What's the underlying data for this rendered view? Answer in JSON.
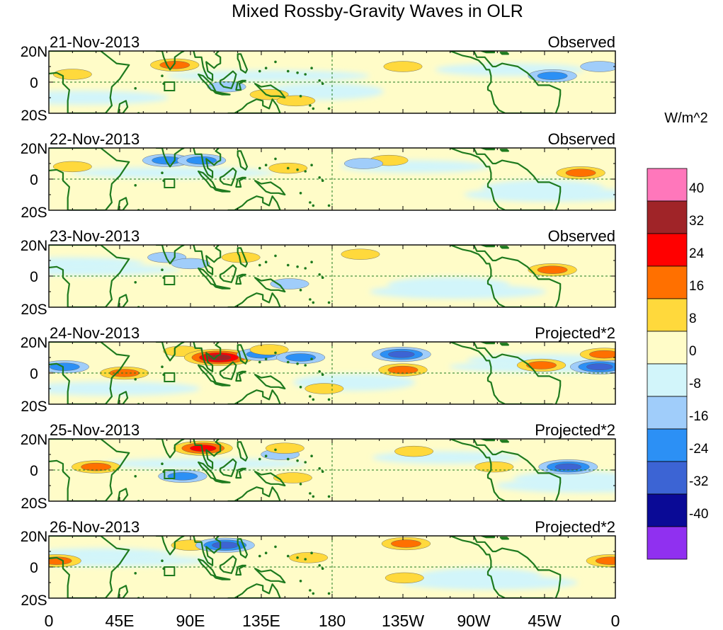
{
  "chart_data": {
    "type": "heatmap",
    "title": "Mixed Rossby-Gravity Waves in OLR",
    "units_label": "W/m^2",
    "x_ticks": [
      "0",
      "45E",
      "90E",
      "135E",
      "180",
      "135W",
      "90W",
      "45W",
      "0"
    ],
    "x_range_deg_east": [
      0,
      360
    ],
    "y_ticks": [
      "20N",
      "0",
      "20S"
    ],
    "y_range_deg": [
      -20,
      20
    ],
    "colorbar": {
      "labels": [
        "40",
        "32",
        "24",
        "16",
        "8",
        "0",
        "-8",
        "-16",
        "-24",
        "-32",
        "-40"
      ],
      "colors": [
        "#ff77bb",
        "#a02428",
        "#ff0000",
        "#ff7000",
        "#ffd93c",
        "#fffcc8",
        "#d2f5fa",
        "#a0cdfa",
        "#2c90f5",
        "#3c64d4",
        "#0a0a96",
        "#9030f0"
      ]
    },
    "panels": [
      {
        "date": "21-Nov-2013",
        "label": "Observed",
        "anomalies": [
          {
            "lon": 15,
            "lat": 5,
            "value": 8
          },
          {
            "lon": 80,
            "lat": 11,
            "value": 16
          },
          {
            "lon": 113,
            "lat": -3,
            "value": -8
          },
          {
            "lon": 140,
            "lat": -8,
            "value": 8
          },
          {
            "lon": 157,
            "lat": -12,
            "value": 8
          },
          {
            "lon": 225,
            "lat": 10,
            "value": 8
          },
          {
            "lon": 320,
            "lat": 4,
            "value": -16
          },
          {
            "lon": 350,
            "lat": 10,
            "value": -8
          }
        ]
      },
      {
        "date": "22-Nov-2013",
        "label": "Observed",
        "anomalies": [
          {
            "lon": 15,
            "lat": 8,
            "value": 8
          },
          {
            "lon": 75,
            "lat": 12,
            "value": -16
          },
          {
            "lon": 97,
            "lat": 12,
            "value": -16
          },
          {
            "lon": 152,
            "lat": 7,
            "value": 8
          },
          {
            "lon": 216,
            "lat": 12,
            "value": 8
          },
          {
            "lon": 338,
            "lat": 4,
            "value": 16
          },
          {
            "lon": 200,
            "lat": 10,
            "value": -8
          }
        ]
      },
      {
        "date": "23-Nov-2013",
        "label": "Observed",
        "anomalies": [
          {
            "lon": 75,
            "lat": 12,
            "value": -8
          },
          {
            "lon": 90,
            "lat": 8,
            "value": -8
          },
          {
            "lon": 122,
            "lat": 12,
            "value": 8
          },
          {
            "lon": 153,
            "lat": -5,
            "value": -8
          },
          {
            "lon": 198,
            "lat": 14,
            "value": 8
          },
          {
            "lon": 320,
            "lat": 4,
            "value": 16
          }
        ]
      },
      {
        "date": "24-Nov-2013",
        "label": "Projected*2",
        "anomalies": [
          {
            "lon": 10,
            "lat": 4,
            "value": -16
          },
          {
            "lon": 48,
            "lat": 0,
            "value": 16
          },
          {
            "lon": 85,
            "lat": 14,
            "value": 8
          },
          {
            "lon": 108,
            "lat": 10,
            "value": 32
          },
          {
            "lon": 135,
            "lat": 12,
            "value": -16
          },
          {
            "lon": 140,
            "lat": 15,
            "value": 8
          },
          {
            "lon": 160,
            "lat": 10,
            "value": -16
          },
          {
            "lon": 175,
            "lat": -10,
            "value": 8
          },
          {
            "lon": 224,
            "lat": 12,
            "value": -24
          },
          {
            "lon": 225,
            "lat": 2,
            "value": 16
          },
          {
            "lon": 313,
            "lat": 5,
            "value": 16
          },
          {
            "lon": 350,
            "lat": 4,
            "value": -24
          },
          {
            "lon": 353,
            "lat": 12,
            "value": 16
          }
        ]
      },
      {
        "date": "25-Nov-2013",
        "label": "Projected*2",
        "anomalies": [
          {
            "lon": 30,
            "lat": 2,
            "value": 16
          },
          {
            "lon": 85,
            "lat": -4,
            "value": -16
          },
          {
            "lon": 98,
            "lat": 14,
            "value": 24
          },
          {
            "lon": 147,
            "lat": 10,
            "value": -8
          },
          {
            "lon": 150,
            "lat": 14,
            "value": 8
          },
          {
            "lon": 155,
            "lat": -5,
            "value": 8
          },
          {
            "lon": 232,
            "lat": 12,
            "value": 8
          },
          {
            "lon": 283,
            "lat": 2,
            "value": 8
          },
          {
            "lon": 330,
            "lat": 2,
            "value": -24
          }
        ]
      },
      {
        "date": "26-Nov-2013",
        "label": "Projected*2",
        "anomalies": [
          {
            "lon": 5,
            "lat": 4,
            "value": 16
          },
          {
            "lon": 90,
            "lat": 14,
            "value": 8
          },
          {
            "lon": 112,
            "lat": 14,
            "value": -24
          },
          {
            "lon": 165,
            "lat": 6,
            "value": 8
          },
          {
            "lon": 227,
            "lat": 15,
            "value": 16
          },
          {
            "lon": 226,
            "lat": -7,
            "value": 8
          },
          {
            "lon": 357,
            "lat": 4,
            "value": 16
          }
        ]
      }
    ]
  }
}
